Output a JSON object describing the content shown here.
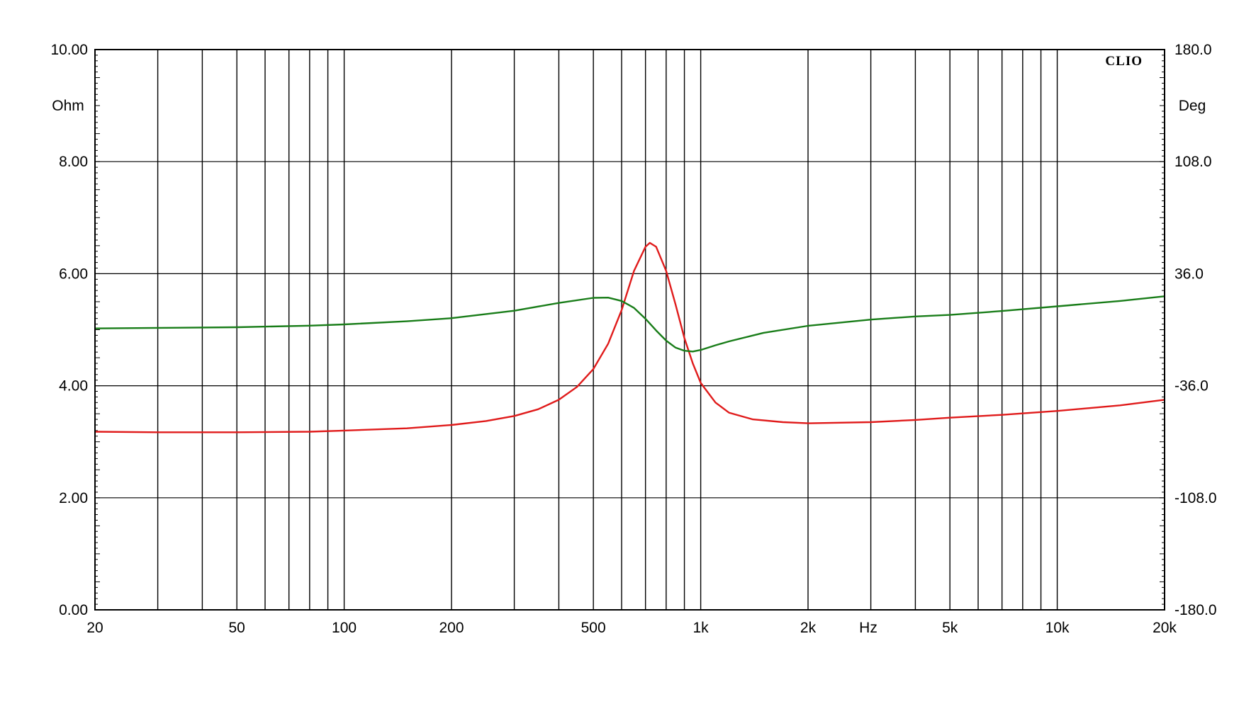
{
  "brand": "CLIO",
  "chart_data": {
    "type": "line",
    "x_scale": "log",
    "xlim": [
      20,
      20000
    ],
    "ylim_left": [
      0,
      10
    ],
    "ylim_right": [
      -180,
      180
    ],
    "grid": true,
    "left_unit": "Ohm",
    "right_unit": "Deg",
    "x_unit": "Hz",
    "left_ticks": [
      {
        "value": 0,
        "label": "0.00"
      },
      {
        "value": 2,
        "label": "2.00"
      },
      {
        "value": 4,
        "label": "4.00"
      },
      {
        "value": 6,
        "label": "6.00"
      },
      {
        "value": 8,
        "label": "8.00"
      },
      {
        "value": 10,
        "label": "10.00"
      }
    ],
    "right_ticks": [
      {
        "value": -180,
        "label": "-180.0"
      },
      {
        "value": -108,
        "label": "-108.0"
      },
      {
        "value": -36,
        "label": "-36.0"
      },
      {
        "value": 36,
        "label": "36.0"
      },
      {
        "value": 108,
        "label": "108.0"
      },
      {
        "value": 180,
        "label": "180.0"
      }
    ],
    "x_ticks": [
      {
        "value": 20,
        "label": "20"
      },
      {
        "value": 50,
        "label": "50"
      },
      {
        "value": 100,
        "label": "100"
      },
      {
        "value": 200,
        "label": "200"
      },
      {
        "value": 500,
        "label": "500"
      },
      {
        "value": 1000,
        "label": "1k"
      },
      {
        "value": 2000,
        "label": "2k"
      },
      {
        "value": 5000,
        "label": "5k"
      },
      {
        "value": 10000,
        "label": "10k"
      },
      {
        "value": 20000,
        "label": "20k"
      }
    ],
    "x_gridlines": [
      30,
      40,
      50,
      60,
      70,
      80,
      90,
      100,
      200,
      300,
      400,
      500,
      600,
      700,
      800,
      900,
      1000,
      2000,
      3000,
      4000,
      5000,
      6000,
      7000,
      8000,
      9000,
      10000
    ],
    "series": [
      {
        "axis": "left",
        "color": "#e01b1b",
        "points": [
          [
            20,
            3.18
          ],
          [
            30,
            3.17
          ],
          [
            50,
            3.17
          ],
          [
            80,
            3.18
          ],
          [
            100,
            3.2
          ],
          [
            150,
            3.24
          ],
          [
            200,
            3.3
          ],
          [
            250,
            3.37
          ],
          [
            300,
            3.46
          ],
          [
            350,
            3.58
          ],
          [
            400,
            3.75
          ],
          [
            450,
            3.98
          ],
          [
            500,
            4.3
          ],
          [
            550,
            4.75
          ],
          [
            600,
            5.35
          ],
          [
            650,
            6.05
          ],
          [
            700,
            6.48
          ],
          [
            720,
            6.55
          ],
          [
            750,
            6.48
          ],
          [
            800,
            6.05
          ],
          [
            850,
            5.45
          ],
          [
            900,
            4.85
          ],
          [
            950,
            4.4
          ],
          [
            1000,
            4.05
          ],
          [
            1100,
            3.7
          ],
          [
            1200,
            3.52
          ],
          [
            1400,
            3.4
          ],
          [
            1700,
            3.35
          ],
          [
            2000,
            3.33
          ],
          [
            3000,
            3.35
          ],
          [
            4000,
            3.39
          ],
          [
            5000,
            3.43
          ],
          [
            7000,
            3.48
          ],
          [
            10000,
            3.55
          ],
          [
            15000,
            3.65
          ],
          [
            20000,
            3.75
          ]
        ]
      },
      {
        "axis": "right",
        "color": "#197d19",
        "points": [
          [
            20,
            0.8
          ],
          [
            30,
            1.2
          ],
          [
            50,
            1.6
          ],
          [
            80,
            2.6
          ],
          [
            100,
            3.4
          ],
          [
            150,
            5.4
          ],
          [
            200,
            7.4
          ],
          [
            300,
            12.2
          ],
          [
            400,
            17.2
          ],
          [
            500,
            20.5
          ],
          [
            550,
            20.6
          ],
          [
            600,
            18.5
          ],
          [
            650,
            14.0
          ],
          [
            700,
            7.0
          ],
          [
            750,
            -0.5
          ],
          [
            800,
            -7.0
          ],
          [
            850,
            -11.5
          ],
          [
            900,
            -13.5
          ],
          [
            950,
            -14.0
          ],
          [
            1000,
            -13.0
          ],
          [
            1100,
            -10.0
          ],
          [
            1200,
            -7.5
          ],
          [
            1500,
            -2.0
          ],
          [
            2000,
            2.5
          ],
          [
            3000,
            6.5
          ],
          [
            4000,
            8.5
          ],
          [
            5000,
            9.5
          ],
          [
            7000,
            12.0
          ],
          [
            10000,
            15.0
          ],
          [
            15000,
            18.5
          ],
          [
            20000,
            21.5
          ]
        ]
      }
    ]
  }
}
